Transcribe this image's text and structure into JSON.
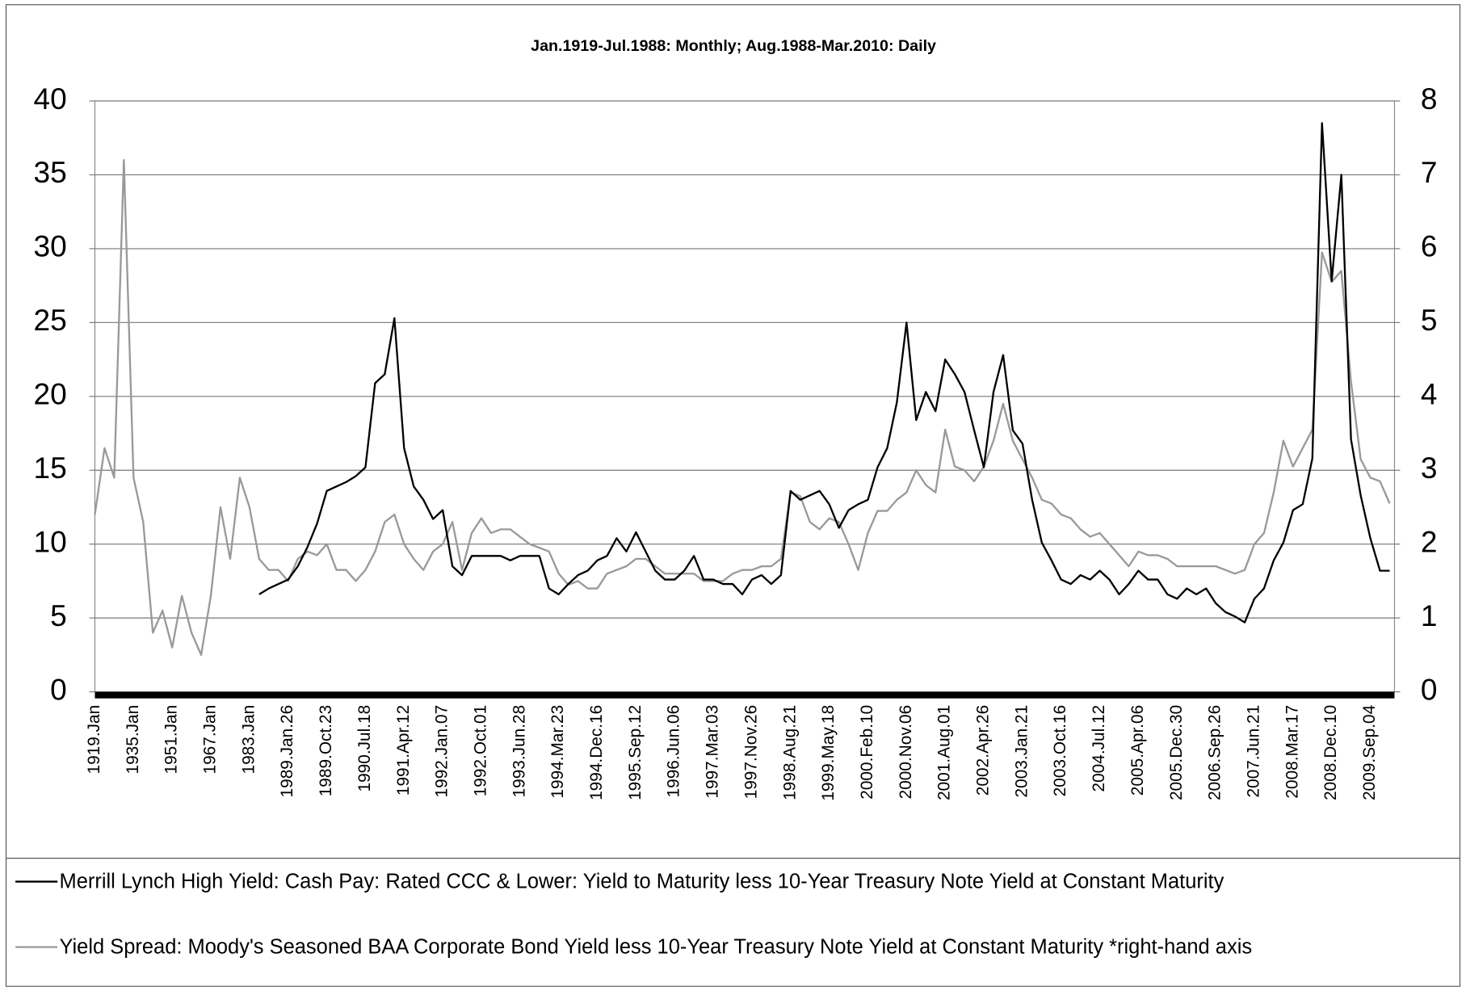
{
  "chart_data": {
    "type": "line",
    "title": "Jan.1919-Jul.1988: Monthly; Aug.1988-Mar.2010: Daily",
    "categories": [
      "1919.Jan",
      null,
      null,
      null,
      "1935.Jan",
      null,
      null,
      null,
      "1951.Jan",
      null,
      null,
      null,
      "1967.Jan",
      null,
      null,
      null,
      "1983.Jan",
      null,
      null,
      null,
      "1989.Jan.26",
      null,
      null,
      null,
      "1989.Oct.23",
      null,
      null,
      null,
      "1990.Jul.18",
      null,
      null,
      null,
      "1991.Apr.12",
      null,
      null,
      null,
      "1992.Jan.07",
      null,
      null,
      null,
      "1992.Oct.01",
      null,
      null,
      null,
      "1993.Jun.28",
      null,
      null,
      null,
      "1994.Mar.23",
      null,
      null,
      null,
      "1994.Dec.16",
      null,
      null,
      null,
      "1995.Sep.12",
      null,
      null,
      null,
      "1996.Jun.06",
      null,
      null,
      null,
      "1997.Mar.03",
      null,
      null,
      null,
      "1997.Nov.26",
      null,
      null,
      null,
      "1998.Aug.21",
      null,
      null,
      null,
      "1999.May.18",
      null,
      null,
      null,
      "2000.Feb.10",
      null,
      null,
      null,
      "2000.Nov.06",
      null,
      null,
      null,
      "2001.Aug.01",
      null,
      null,
      null,
      "2002.Apr.26",
      null,
      null,
      null,
      "2003.Jan.21",
      null,
      null,
      null,
      "2003.Oct.16",
      null,
      null,
      null,
      "2004.Jul.12",
      null,
      null,
      null,
      "2005.Apr.06",
      null,
      null,
      null,
      "2005.Dec.30",
      null,
      null,
      null,
      "2006.Sep.26",
      null,
      null,
      null,
      "2007.Jun.21",
      null,
      null,
      null,
      "2008.Mar.17",
      null,
      null,
      null,
      "2008.Dec.10",
      null,
      null,
      null,
      "2009.Sep.04",
      null,
      null
    ],
    "series": [
      {
        "name": "Merrill Lynch High Yield: Cash Pay: Rated CCC & Lower: Yield to Maturity less 10-Year Treasury Note Yield at Constant Maturity",
        "color": "#000000",
        "axis": "y",
        "values": [
          null,
          null,
          null,
          null,
          null,
          null,
          null,
          null,
          null,
          null,
          null,
          null,
          null,
          null,
          null,
          null,
          null,
          6.6,
          7.0,
          7.3,
          7.6,
          8.5,
          9.8,
          11.4,
          13.6,
          13.9,
          14.2,
          14.6,
          15.2,
          20.9,
          21.5,
          25.3,
          16.5,
          13.9,
          13.0,
          11.7,
          12.3,
          8.5,
          7.9,
          9.2,
          9.2,
          9.2,
          9.2,
          8.9,
          9.2,
          9.2,
          9.2,
          7.0,
          6.6,
          7.3,
          7.9,
          8.2,
          8.9,
          9.2,
          10.4,
          9.5,
          10.8,
          9.5,
          8.2,
          7.6,
          7.6,
          8.2,
          9.2,
          7.6,
          7.6,
          7.3,
          7.3,
          6.6,
          7.6,
          7.9,
          7.3,
          7.9,
          13.6,
          13.0,
          13.3,
          13.6,
          12.7,
          11.1,
          12.3,
          12.7,
          13.0,
          15.2,
          16.5,
          19.6,
          25.0,
          18.4,
          20.3,
          19.0,
          22.5,
          21.5,
          20.3,
          17.7,
          15.2,
          20.3,
          22.8,
          17.7,
          16.8,
          13.0,
          10.1,
          8.9,
          7.6,
          7.3,
          7.9,
          7.6,
          8.2,
          7.6,
          6.6,
          7.3,
          8.2,
          7.6,
          7.6,
          6.6,
          6.3,
          7.0,
          6.6,
          7.0,
          6.0,
          5.4,
          5.1,
          4.7,
          6.3,
          7.0,
          8.9,
          10.1,
          12.3,
          12.7,
          15.8,
          38.5,
          27.8,
          35.0,
          17.1,
          13.3,
          10.4,
          8.2,
          8.2
        ]
      },
      {
        "name": "Yield Spread: Moody's Seasoned BAA Corporate Bond Yield less 10-Year Treasury Note Yield at Constant Maturity *right-hand axis",
        "color": "#999999",
        "axis": "y2",
        "values": [
          2.4,
          3.3,
          2.9,
          7.2,
          2.9,
          2.3,
          0.8,
          1.1,
          0.6,
          1.3,
          0.8,
          0.5,
          1.3,
          2.5,
          1.8,
          2.9,
          2.5,
          1.8,
          1.65,
          1.65,
          1.5,
          1.8,
          1.9,
          1.85,
          2.0,
          1.65,
          1.65,
          1.5,
          1.65,
          1.9,
          2.3,
          2.4,
          2.0,
          1.8,
          1.65,
          1.9,
          2.0,
          2.3,
          1.65,
          2.15,
          2.35,
          2.15,
          2.2,
          2.2,
          2.1,
          2.0,
          1.95,
          1.9,
          1.6,
          1.45,
          1.5,
          1.4,
          1.4,
          1.6,
          1.65,
          1.7,
          1.8,
          1.8,
          1.7,
          1.6,
          1.6,
          1.6,
          1.6,
          1.5,
          1.5,
          1.5,
          1.6,
          1.65,
          1.65,
          1.7,
          1.7,
          1.8,
          2.7,
          2.65,
          2.3,
          2.2,
          2.35,
          2.3,
          2.0,
          1.65,
          2.15,
          2.45,
          2.45,
          2.6,
          2.7,
          3.0,
          2.8,
          2.7,
          3.55,
          3.05,
          3.0,
          2.85,
          3.05,
          3.4,
          3.9,
          3.4,
          3.15,
          2.9,
          2.6,
          2.55,
          2.4,
          2.35,
          2.2,
          2.1,
          2.15,
          2.0,
          1.85,
          1.7,
          1.9,
          1.85,
          1.85,
          1.8,
          1.7,
          1.7,
          1.7,
          1.7,
          1.7,
          1.65,
          1.6,
          1.65,
          2.0,
          2.15,
          2.7,
          3.4,
          3.05,
          3.3,
          3.55,
          5.95,
          5.55,
          5.7,
          4.2,
          3.15,
          2.9,
          2.85,
          2.55
        ]
      }
    ],
    "ylim": [
      0,
      40
    ],
    "yticks": [
      0,
      5,
      10,
      15,
      20,
      25,
      30,
      35,
      40
    ],
    "y2lim": [
      0,
      8
    ],
    "y2ticks": [
      0,
      1,
      2,
      3,
      4,
      5,
      6,
      7,
      8
    ],
    "grid": true
  }
}
